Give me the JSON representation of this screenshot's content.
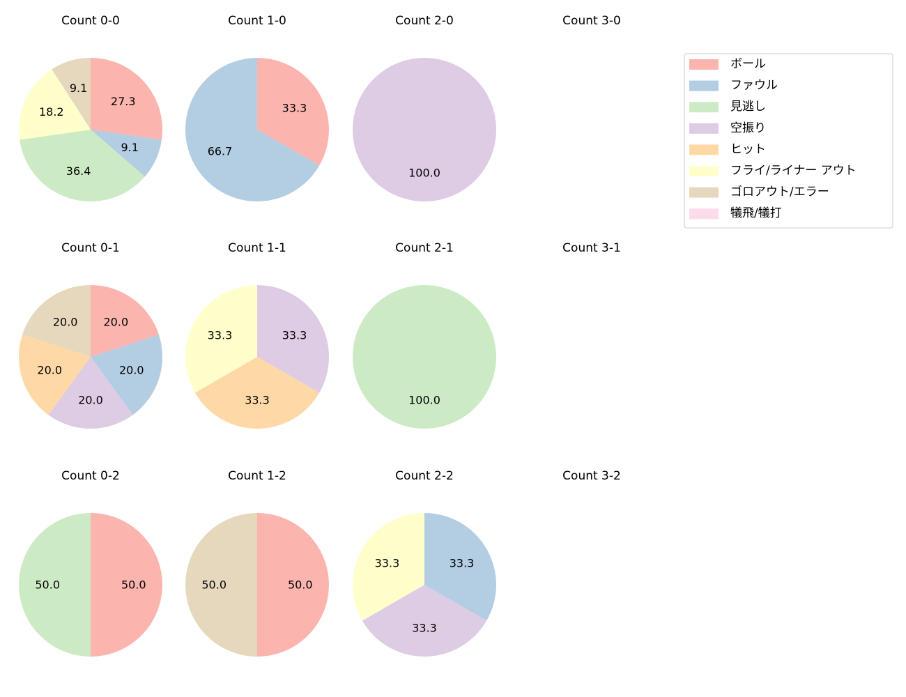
{
  "chart_data": {
    "type": "pie",
    "start_angle_deg": 90,
    "direction": "clockwise",
    "value_format": "percent, one decimal",
    "categories": [
      "ボール",
      "ファウル",
      "見逃し",
      "空振り",
      "ヒット",
      "フライ/ライナー アウト",
      "ゴロアウト/エラー",
      "犠飛/犠打"
    ],
    "colors": [
      "#fbb4ae",
      "#b3cde3",
      "#ccebc5",
      "#decbe4",
      "#fed9a6",
      "#ffffcc",
      "#e5d8bd",
      "#fddaec"
    ],
    "legend": {
      "placement": "top-right"
    },
    "grid": {
      "rows": 3,
      "cols": 4
    },
    "pies": [
      {
        "title": "Count 0-0",
        "values": [
          27.3,
          9.1,
          36.4,
          0,
          0,
          18.2,
          9.1,
          0
        ]
      },
      {
        "title": "Count 1-0",
        "values": [
          33.3,
          66.7,
          0,
          0,
          0,
          0,
          0,
          0
        ]
      },
      {
        "title": "Count 2-0",
        "values": [
          0,
          0,
          0,
          100.0,
          0,
          0,
          0,
          0
        ]
      },
      {
        "title": "Count 3-0",
        "values": []
      },
      {
        "title": "Count 0-1",
        "values": [
          20.0,
          20.0,
          0,
          20.0,
          20.0,
          0,
          20.0,
          0
        ]
      },
      {
        "title": "Count 1-1",
        "values": [
          0,
          0,
          0,
          33.3,
          33.3,
          33.3,
          0,
          0
        ]
      },
      {
        "title": "Count 2-1",
        "values": [
          0,
          0,
          100.0,
          0,
          0,
          0,
          0,
          0
        ]
      },
      {
        "title": "Count 3-1",
        "values": []
      },
      {
        "title": "Count 0-2",
        "values": [
          50.0,
          0,
          50.0,
          0,
          0,
          0,
          0,
          0
        ]
      },
      {
        "title": "Count 1-2",
        "values": [
          50.0,
          0,
          0,
          0,
          0,
          0,
          50.0,
          0
        ]
      },
      {
        "title": "Count 2-2",
        "values": [
          0,
          33.3,
          0,
          33.3,
          0,
          33.3,
          0,
          0
        ]
      },
      {
        "title": "Count 3-2",
        "values": []
      }
    ]
  }
}
